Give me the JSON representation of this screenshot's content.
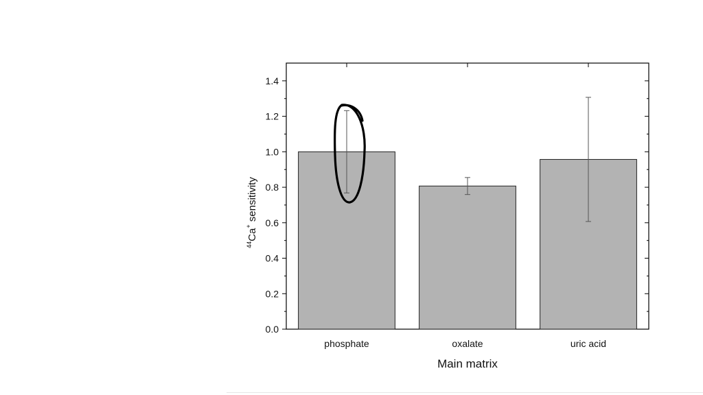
{
  "chart_data": {
    "type": "bar",
    "categories": [
      "phosphate",
      "oxalate",
      "uric acid"
    ],
    "values": [
      1.0,
      0.807,
      0.957
    ],
    "errors": [
      0.232,
      0.048,
      0.35
    ],
    "xlabel": "Main matrix",
    "ylabel": {
      "superscript_mass": "44",
      "element": "Ca",
      "superscript_charge": "+",
      "rest": " sensitivity"
    },
    "ylim": [
      0,
      1.5
    ],
    "yticks": [
      0.0,
      0.2,
      0.4,
      0.6,
      0.8,
      1.0,
      1.2,
      1.4
    ],
    "ytick_labels": [
      "0.0",
      "0.2",
      "0.4",
      "0.6",
      "0.8",
      "1.0",
      "1.2",
      "1.4"
    ],
    "grid": false,
    "colors": {
      "bar_fill": "#b3b3b3",
      "bar_stroke": "#222222",
      "annotation": "#000000"
    },
    "annotation": {
      "shape": "hand-drawn ellipse",
      "target_category": "phosphate",
      "note_target": "error bar"
    }
  }
}
